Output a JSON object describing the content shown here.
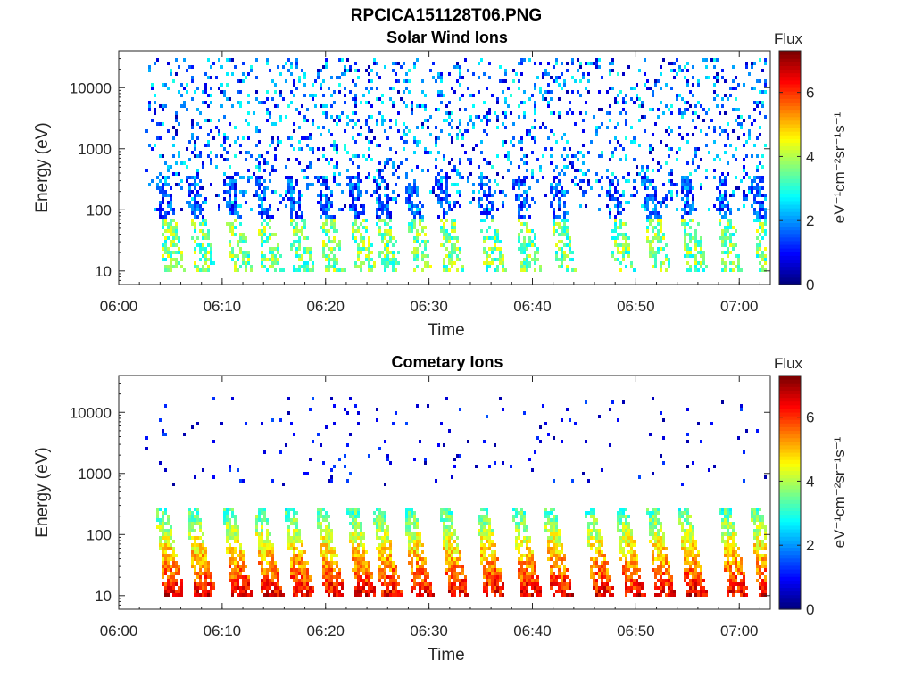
{
  "page": {
    "title": "RPCICA151128T06.PNG"
  },
  "chart_data": [
    {
      "type": "heatmap",
      "title": "Solar Wind Ions",
      "xlabel": "Time",
      "ylabel": "Energy (eV)",
      "x_ticks": [
        "06:00",
        "06:10",
        "06:20",
        "06:30",
        "06:40",
        "06:50",
        "07:00"
      ],
      "x_range_minutes": [
        0,
        63
      ],
      "y_scale": "log",
      "y_ticks": [
        "10",
        "100",
        "1000",
        "10000"
      ],
      "y_range": [
        6,
        40000
      ],
      "colorbar": {
        "label": "Flux",
        "unit": "eV⁻¹cm⁻²sr⁻¹s⁻¹",
        "ticks": [
          "0",
          "2",
          "4",
          "6"
        ],
        "range": [
          0,
          7.3
        ]
      },
      "features": {
        "background_log_energy": [
          2.0,
          4.5
        ],
        "background_flux": [
          0.3,
          3.0
        ],
        "bursts_min": [
          4.0,
          7.0,
          10.5,
          13.5,
          16.5,
          19.5,
          22.5,
          25.0,
          28.0,
          31.0,
          35.0,
          38.5,
          42.0,
          47.5,
          51.0,
          54.5,
          58.0,
          61.5
        ],
        "burst_peak_flux": 4.8
      }
    },
    {
      "type": "heatmap",
      "title": "Cometary Ions",
      "xlabel": "Time",
      "ylabel": "Energy (eV)",
      "x_ticks": [
        "06:00",
        "06:10",
        "06:20",
        "06:30",
        "06:40",
        "06:50",
        "07:00"
      ],
      "x_range_minutes": [
        0,
        63
      ],
      "y_scale": "log",
      "y_ticks": [
        "10",
        "100",
        "1000",
        "10000"
      ],
      "y_range": [
        6,
        40000
      ],
      "colorbar": {
        "label": "Flux",
        "unit": "eV⁻¹cm⁻²sr⁻¹s⁻¹",
        "ticks": [
          "0",
          "2",
          "4",
          "6"
        ],
        "range": [
          0,
          7.3
        ]
      },
      "features": {
        "background_log_energy": [
          2.8,
          4.3
        ],
        "background_flux": [
          0.2,
          1.5
        ],
        "bursts_min": [
          4.0,
          7.0,
          10.5,
          13.5,
          16.5,
          19.5,
          22.5,
          25.0,
          28.0,
          31.5,
          35.0,
          38.5,
          41.5,
          45.5,
          48.5,
          51.5,
          54.5,
          58.5,
          61.5
        ],
        "burst_peak_flux": 6.2
      }
    }
  ]
}
